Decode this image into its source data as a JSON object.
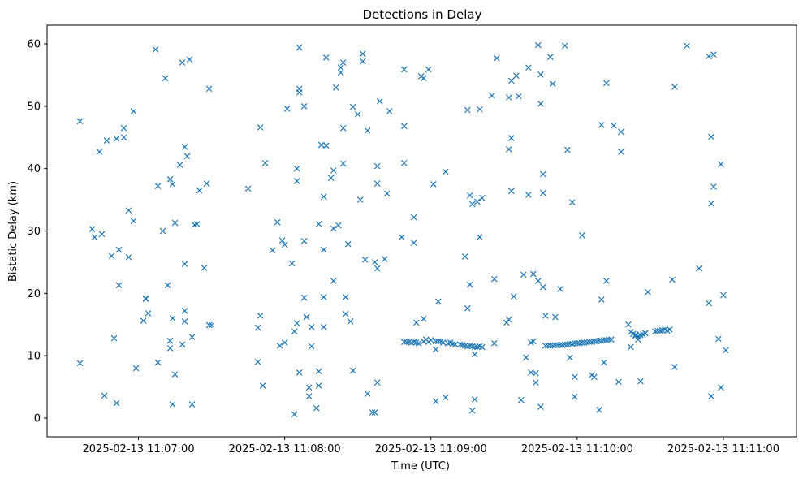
{
  "chart_data": {
    "type": "scatter",
    "title": "Detections in Delay",
    "xlabel": "Time (UTC)",
    "ylabel": "Bistatic Delay (km)",
    "x_tick_labels": [
      "2025-02-13 11:07:00",
      "2025-02-13 11:08:00",
      "2025-02-13 11:09:00",
      "2025-02-13 11:10:00",
      "2025-02-13 11:11:00"
    ],
    "x_ticks_seconds": [
      420,
      480,
      540,
      600,
      660
    ],
    "x_unit": "seconds past 2025-02-13 11:00:00 UTC",
    "xlim": [
      382.5,
      690
    ],
    "ylim": [
      -3,
      63
    ],
    "y_ticks": [
      0,
      10,
      20,
      30,
      40,
      50,
      60
    ],
    "marker": "x",
    "color": "#1f77b4",
    "grid": false,
    "series": [
      {
        "points": [
          [
            396,
            47.6
          ],
          [
            396,
            8.8
          ],
          [
            401,
            30.3
          ],
          [
            402,
            29
          ],
          [
            404,
            42.7
          ],
          [
            405,
            29.5
          ],
          [
            406,
            3.6
          ],
          [
            407,
            44.5
          ],
          [
            409,
            26
          ],
          [
            410,
            12.8
          ],
          [
            411,
            44.8
          ],
          [
            411,
            2.4
          ],
          [
            412,
            21.3
          ],
          [
            412,
            27
          ],
          [
            414,
            46.5
          ],
          [
            414,
            45
          ],
          [
            416,
            25.8
          ],
          [
            416,
            33.3
          ],
          [
            418,
            31.6
          ],
          [
            418,
            49.2
          ],
          [
            419,
            8
          ],
          [
            422,
            15.6
          ],
          [
            423,
            19.2
          ],
          [
            423,
            19.1
          ],
          [
            424,
            16.8
          ],
          [
            427,
            59.1
          ],
          [
            428,
            37.2
          ],
          [
            428,
            8.9
          ],
          [
            430,
            30
          ],
          [
            431,
            54.5
          ],
          [
            432,
            21.3
          ],
          [
            433,
            38.3
          ],
          [
            433,
            12.4
          ],
          [
            433,
            11.2
          ],
          [
            434,
            37.5
          ],
          [
            434,
            16
          ],
          [
            434,
            2.2
          ],
          [
            435,
            31.3
          ],
          [
            435,
            7
          ],
          [
            437,
            40.6
          ],
          [
            438,
            57
          ],
          [
            438,
            11.8
          ],
          [
            439,
            43.5
          ],
          [
            439,
            24.7
          ],
          [
            439,
            17.2
          ],
          [
            439,
            15.5
          ],
          [
            440,
            42
          ],
          [
            441,
            57.5
          ],
          [
            442,
            13
          ],
          [
            442,
            2.2
          ],
          [
            443,
            31
          ],
          [
            444,
            31.1
          ],
          [
            445,
            36.5
          ],
          [
            447,
            24.1
          ],
          [
            448,
            37.6
          ],
          [
            449,
            52.8
          ],
          [
            449,
            14.9
          ],
          [
            450,
            14.9
          ],
          [
            465,
            36.8
          ],
          [
            469,
            14.5
          ],
          [
            469,
            9
          ],
          [
            470,
            46.6
          ],
          [
            470,
            16.4
          ],
          [
            471,
            5.2
          ],
          [
            472,
            40.9
          ],
          [
            475,
            26.9
          ],
          [
            477,
            31.4
          ],
          [
            478,
            11.6
          ],
          [
            479,
            28.5
          ],
          [
            480,
            12.1
          ],
          [
            480,
            27.8
          ],
          [
            481,
            49.6
          ],
          [
            483,
            24.8
          ],
          [
            484,
            0.6
          ],
          [
            484,
            13.9
          ],
          [
            485,
            40
          ],
          [
            485,
            38
          ],
          [
            485,
            15.2
          ],
          [
            486,
            7.3
          ],
          [
            486,
            52.8
          ],
          [
            486,
            52.2
          ],
          [
            486,
            59.4
          ],
          [
            488,
            28.4
          ],
          [
            488,
            19.3
          ],
          [
            488,
            50
          ],
          [
            489,
            16.2
          ],
          [
            490,
            4.9
          ],
          [
            490,
            3.5
          ],
          [
            491,
            14.6
          ],
          [
            491,
            11.5
          ],
          [
            493,
            1.6
          ],
          [
            494,
            31.1
          ],
          [
            494,
            5.2
          ],
          [
            494,
            7.5
          ],
          [
            495,
            43.8
          ],
          [
            496,
            35.5
          ],
          [
            496,
            19.4
          ],
          [
            496,
            14.6
          ],
          [
            496,
            27
          ],
          [
            497,
            43.7
          ],
          [
            497,
            57.8
          ],
          [
            499,
            38.5
          ],
          [
            500,
            30.4
          ],
          [
            500,
            22
          ],
          [
            500,
            39.7
          ],
          [
            501,
            53
          ],
          [
            502,
            30.9
          ],
          [
            503,
            55.4
          ],
          [
            503,
            56.2
          ],
          [
            504,
            57
          ],
          [
            504,
            46.5
          ],
          [
            504,
            40.8
          ],
          [
            505,
            19.4
          ],
          [
            505,
            16.7
          ],
          [
            506,
            27.9
          ],
          [
            507,
            15.5
          ],
          [
            508,
            7.6
          ],
          [
            508,
            49.9
          ],
          [
            510,
            48.7
          ],
          [
            511,
            35
          ],
          [
            512,
            58.4
          ],
          [
            512,
            57.2
          ],
          [
            513,
            25.4
          ],
          [
            514,
            46.1
          ],
          [
            514,
            3.9
          ],
          [
            516,
            0.9
          ],
          [
            517,
            0.9
          ],
          [
            517,
            25
          ],
          [
            518,
            24
          ],
          [
            518,
            40.4
          ],
          [
            518,
            37.6
          ],
          [
            518,
            5.7
          ],
          [
            519,
            50.8
          ],
          [
            521,
            25.5
          ],
          [
            522,
            36
          ],
          [
            523,
            49.2
          ],
          [
            528,
            29
          ],
          [
            529,
            55.9
          ],
          [
            529,
            46.8
          ],
          [
            529,
            40.9
          ],
          [
            533,
            32.2
          ],
          [
            533,
            28.1
          ],
          [
            534,
            15.3
          ],
          [
            536,
            54.8
          ],
          [
            537,
            15.9
          ],
          [
            537,
            54.5
          ],
          [
            539,
            55.9
          ],
          [
            541,
            37.5
          ],
          [
            542,
            2.7
          ],
          [
            542,
            11
          ],
          [
            543,
            18.7
          ],
          [
            546,
            39.5
          ],
          [
            546,
            3.3
          ],
          [
            529,
            12.2
          ],
          [
            530,
            12.2
          ],
          [
            531,
            12.2
          ],
          [
            532,
            12.1
          ],
          [
            533,
            12.2
          ],
          [
            534,
            12.1
          ],
          [
            535,
            12
          ],
          [
            537,
            12.3
          ],
          [
            538,
            12.6
          ],
          [
            539,
            12.2
          ],
          [
            540,
            12.5
          ],
          [
            542,
            12.3
          ],
          [
            543,
            12.3
          ],
          [
            544,
            12.3
          ],
          [
            545,
            12.1
          ],
          [
            547,
            12
          ],
          [
            548,
            12.1
          ],
          [
            549,
            11.9
          ],
          [
            550,
            11.8
          ],
          [
            552,
            11.8
          ],
          [
            553,
            11.7
          ],
          [
            554,
            11.6
          ],
          [
            555,
            11.5
          ],
          [
            556,
            11.6
          ],
          [
            557,
            11.5
          ],
          [
            558,
            11.4
          ],
          [
            559,
            11.4
          ],
          [
            560,
            11.5
          ],
          [
            561,
            11.4
          ],
          [
            554,
            25.9
          ],
          [
            555,
            49.4
          ],
          [
            555,
            17.6
          ],
          [
            556,
            35.7
          ],
          [
            556,
            21.4
          ],
          [
            557,
            34.3
          ],
          [
            557,
            1.2
          ],
          [
            558,
            10.2
          ],
          [
            558,
            3
          ],
          [
            559,
            34.7
          ],
          [
            560,
            49.5
          ],
          [
            560,
            29
          ],
          [
            561,
            35.3
          ],
          [
            565,
            51.7
          ],
          [
            566,
            12
          ],
          [
            566,
            22.3
          ],
          [
            567,
            57.7
          ],
          [
            571,
            15.3
          ],
          [
            572,
            43.1
          ],
          [
            572,
            15.8
          ],
          [
            572,
            51.4
          ],
          [
            573,
            44.9
          ],
          [
            573,
            36.4
          ],
          [
            573,
            54.1
          ],
          [
            574,
            19.5
          ],
          [
            575,
            54.9
          ],
          [
            576,
            51.6
          ],
          [
            577,
            2.9
          ],
          [
            578,
            23
          ],
          [
            579,
            9.7
          ],
          [
            580,
            35.8
          ],
          [
            580,
            56.2
          ],
          [
            581,
            12.1
          ],
          [
            581,
            7.3
          ],
          [
            582,
            12.3
          ],
          [
            582,
            23.1
          ],
          [
            583,
            5.7
          ],
          [
            583,
            7.2
          ],
          [
            584,
            59.8
          ],
          [
            584,
            22
          ],
          [
            585,
            50.4
          ],
          [
            585,
            55.1
          ],
          [
            585,
            1.8
          ],
          [
            586,
            39.1
          ],
          [
            586,
            21
          ],
          [
            586,
            36.1
          ],
          [
            587,
            16.4
          ],
          [
            589,
            57.9
          ],
          [
            590,
            53.6
          ],
          [
            591,
            16.2
          ],
          [
            593,
            20.7
          ],
          [
            595,
            59.7
          ],
          [
            596,
            43
          ],
          [
            597,
            9.7
          ],
          [
            598,
            34.6
          ],
          [
            599,
            3.4
          ],
          [
            599,
            6.6
          ],
          [
            602,
            29.3
          ],
          [
            606,
            6.9
          ],
          [
            607,
            6.6
          ],
          [
            609,
            1.3
          ],
          [
            610,
            19
          ],
          [
            610,
            47
          ],
          [
            611,
            8.9
          ],
          [
            612,
            22
          ],
          [
            612,
            53.7
          ],
          [
            615,
            46.9
          ],
          [
            617,
            5.8
          ],
          [
            618,
            45.9
          ],
          [
            618,
            42.7
          ],
          [
            621,
            15
          ],
          [
            622,
            11.4
          ],
          [
            624,
            13.2
          ],
          [
            625,
            12.6
          ],
          [
            626,
            5.9
          ],
          [
            628,
            13.6
          ],
          [
            629,
            20.2
          ],
          [
            587,
            11.6
          ],
          [
            588,
            11.6
          ],
          [
            589,
            11.6
          ],
          [
            590,
            11.6
          ],
          [
            591,
            11.7
          ],
          [
            592,
            11.7
          ],
          [
            593,
            11.7
          ],
          [
            594,
            11.7
          ],
          [
            595,
            11.8
          ],
          [
            596,
            11.8
          ],
          [
            597,
            11.9
          ],
          [
            598,
            11.9
          ],
          [
            599,
            12
          ],
          [
            600,
            12
          ],
          [
            601,
            12
          ],
          [
            602,
            12.1
          ],
          [
            603,
            12.1
          ],
          [
            604,
            12.1
          ],
          [
            605,
            12.2
          ],
          [
            606,
            12.2
          ],
          [
            607,
            12.3
          ],
          [
            608,
            12.3
          ],
          [
            609,
            12.4
          ],
          [
            610,
            12.4
          ],
          [
            611,
            12.5
          ],
          [
            612,
            12.5
          ],
          [
            613,
            12.6
          ],
          [
            614,
            12.6
          ],
          [
            622,
            13.8
          ],
          [
            623,
            13.5
          ],
          [
            624,
            13.4
          ],
          [
            625,
            13.1
          ],
          [
            626,
            13.3
          ],
          [
            627,
            13.4
          ],
          [
            628,
            13.6
          ],
          [
            632,
            13.9
          ],
          [
            633,
            14
          ],
          [
            634,
            14
          ],
          [
            635,
            14.1
          ],
          [
            636,
            14.2
          ],
          [
            637,
            14
          ],
          [
            638,
            14.2
          ],
          [
            639,
            22.2
          ],
          [
            640,
            8.2
          ],
          [
            640,
            53.1
          ],
          [
            645,
            59.7
          ],
          [
            650,
            24
          ],
          [
            654,
            18.4
          ],
          [
            654,
            58
          ],
          [
            655,
            3.5
          ],
          [
            655,
            45.1
          ],
          [
            655,
            34.4
          ],
          [
            656,
            37.1
          ],
          [
            656,
            58.3
          ],
          [
            658,
            12.7
          ],
          [
            659,
            4.9
          ],
          [
            659,
            40.7
          ],
          [
            660,
            19.7
          ],
          [
            661,
            10.9
          ]
        ]
      }
    ]
  }
}
